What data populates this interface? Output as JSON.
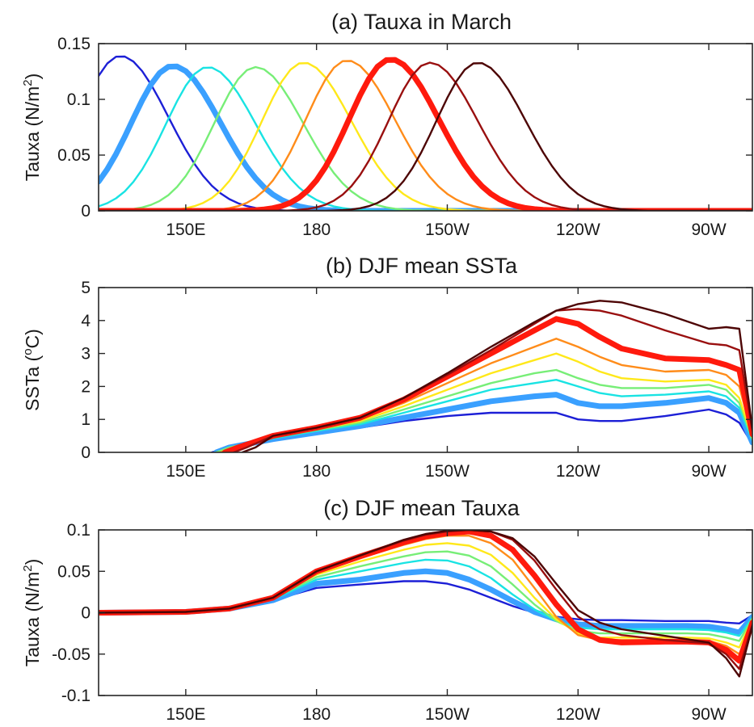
{
  "chart_data": [
    {
      "type": "line",
      "title": "(a) Tauxa in March",
      "ylabel": "Tauxa (N/m",
      "ylabel_sup": "2",
      "ylabel_tail": ")",
      "xlim": [
        130,
        280
      ],
      "ylim": [
        0,
        0.15
      ],
      "xticks": [
        {
          "v": 150,
          "label": "150E"
        },
        {
          "v": 180,
          "label": "180"
        },
        {
          "v": 210,
          "label": "150W"
        },
        {
          "v": 240,
          "label": "120W"
        },
        {
          "v": 270,
          "label": "90W"
        }
      ],
      "yticks": [
        {
          "v": 0,
          "label": "0"
        },
        {
          "v": 0.05,
          "label": "0.05"
        },
        {
          "v": 0.1,
          "label": "0.1"
        },
        {
          "v": 0.15,
          "label": "0.15"
        }
      ],
      "grid": false,
      "series": [
        {
          "color": "#1c1fd6",
          "thick": false,
          "peak_lon": 135,
          "amp": 0.139
        },
        {
          "color": "#3aa0ff",
          "thick": true,
          "peak_lon": 147,
          "amp": 0.13
        },
        {
          "color": "#19e3e3",
          "thick": false,
          "peak_lon": 155,
          "amp": 0.129
        },
        {
          "color": "#77ee77",
          "thick": false,
          "peak_lon": 166,
          "amp": 0.129
        },
        {
          "color": "#ffe81a",
          "thick": false,
          "peak_lon": 177,
          "amp": 0.133
        },
        {
          "color": "#ff8c1a",
          "thick": false,
          "peak_lon": 187,
          "amp": 0.135
        },
        {
          "color": "#ff1a0d",
          "thick": true,
          "peak_lon": 197,
          "amp": 0.136
        },
        {
          "color": "#990f0f",
          "thick": false,
          "peak_lon": 206,
          "amp": 0.133
        },
        {
          "color": "#4d0505",
          "thick": false,
          "peak_lon": 217,
          "amp": 0.133
        }
      ]
    },
    {
      "type": "line",
      "title": "(b) DJF mean SSTa",
      "ylabel": "SSTa (",
      "ylabel_sup": "o",
      "ylabel_tail": "C)",
      "xlim": [
        130,
        280
      ],
      "ylim": [
        0,
        5
      ],
      "xticks": [
        {
          "v": 150,
          "label": "150E"
        },
        {
          "v": 180,
          "label": "180"
        },
        {
          "v": 210,
          "label": "150W"
        },
        {
          "v": 240,
          "label": "120W"
        },
        {
          "v": 270,
          "label": "90W"
        }
      ],
      "yticks": [
        {
          "v": 0,
          "label": "0"
        },
        {
          "v": 1,
          "label": "1"
        },
        {
          "v": 2,
          "label": "2"
        },
        {
          "v": 3,
          "label": "3"
        },
        {
          "v": 4,
          "label": "4"
        },
        {
          "v": 5,
          "label": "5"
        }
      ],
      "grid": false,
      "series": [
        {
          "color": "#1c1fd6",
          "thick": false,
          "x": [
            156,
            160,
            170,
            180,
            190,
            200,
            210,
            220,
            230,
            235,
            240,
            245,
            250,
            260,
            270,
            274,
            277,
            280
          ],
          "y": [
            0,
            0.15,
            0.4,
            0.6,
            0.75,
            0.95,
            1.1,
            1.2,
            1.2,
            1.2,
            1.0,
            0.95,
            0.95,
            1.1,
            1.3,
            1.15,
            0.9,
            0.25
          ]
        },
        {
          "color": "#3aa0ff",
          "thick": true,
          "x": [
            157,
            160,
            170,
            180,
            190,
            200,
            210,
            220,
            230,
            235,
            240,
            245,
            250,
            260,
            270,
            274,
            277,
            280
          ],
          "y": [
            0,
            0.15,
            0.4,
            0.6,
            0.8,
            1.05,
            1.3,
            1.55,
            1.7,
            1.75,
            1.5,
            1.4,
            1.4,
            1.5,
            1.65,
            1.5,
            1.2,
            0.3
          ]
        },
        {
          "color": "#19e3e3",
          "thick": false,
          "x": [
            157,
            160,
            170,
            180,
            190,
            200,
            210,
            220,
            230,
            235,
            240,
            245,
            250,
            260,
            270,
            274,
            277,
            280
          ],
          "y": [
            0,
            0.15,
            0.42,
            0.65,
            0.85,
            1.2,
            1.55,
            1.9,
            2.1,
            2.2,
            2.0,
            1.8,
            1.7,
            1.75,
            1.85,
            1.7,
            1.35,
            0.35
          ]
        },
        {
          "color": "#77ee77",
          "thick": false,
          "x": [
            157,
            160,
            170,
            180,
            190,
            200,
            210,
            220,
            230,
            235,
            240,
            245,
            250,
            260,
            270,
            274,
            277,
            280
          ],
          "y": [
            0,
            0.15,
            0.45,
            0.68,
            0.9,
            1.3,
            1.7,
            2.1,
            2.4,
            2.5,
            2.25,
            2.05,
            1.95,
            1.95,
            2.05,
            1.9,
            1.5,
            0.4
          ]
        },
        {
          "color": "#ffe81a",
          "thick": false,
          "x": [
            158,
            161,
            170,
            180,
            190,
            200,
            210,
            220,
            230,
            235,
            240,
            245,
            250,
            260,
            270,
            274,
            277,
            280
          ],
          "y": [
            0,
            0.15,
            0.45,
            0.7,
            0.95,
            1.4,
            1.9,
            2.4,
            2.8,
            3.0,
            2.75,
            2.45,
            2.25,
            2.15,
            2.2,
            2.05,
            1.65,
            0.45
          ]
        },
        {
          "color": "#ff8c1a",
          "thick": false,
          "x": [
            158,
            161,
            170,
            180,
            190,
            200,
            210,
            220,
            230,
            235,
            240,
            245,
            250,
            260,
            270,
            274,
            277,
            280
          ],
          "y": [
            0,
            0.15,
            0.48,
            0.72,
            1.0,
            1.5,
            2.1,
            2.7,
            3.2,
            3.45,
            3.2,
            2.9,
            2.65,
            2.45,
            2.5,
            2.35,
            2.0,
            0.5
          ]
        },
        {
          "color": "#ff1a0d",
          "thick": true,
          "x": [
            159,
            162,
            170,
            180,
            190,
            200,
            210,
            220,
            230,
            235,
            240,
            245,
            250,
            260,
            270,
            274,
            277,
            280
          ],
          "y": [
            0,
            0.15,
            0.5,
            0.75,
            1.05,
            1.6,
            2.3,
            3.0,
            3.7,
            4.05,
            3.9,
            3.5,
            3.15,
            2.85,
            2.8,
            2.65,
            2.5,
            0.55
          ]
        },
        {
          "color": "#990f0f",
          "thick": false,
          "x": [
            161,
            164,
            170,
            180,
            190,
            200,
            210,
            220,
            230,
            235,
            240,
            245,
            250,
            260,
            270,
            274,
            277,
            280
          ],
          "y": [
            0,
            0.15,
            0.5,
            0.75,
            1.05,
            1.65,
            2.35,
            3.1,
            3.9,
            4.3,
            4.35,
            4.3,
            4.15,
            3.7,
            3.3,
            3.25,
            3.1,
            0.65
          ]
        },
        {
          "color": "#4d0505",
          "thick": false,
          "x": [
            163,
            166,
            170,
            180,
            190,
            200,
            210,
            220,
            230,
            235,
            240,
            245,
            250,
            260,
            270,
            274,
            277,
            280
          ],
          "y": [
            0,
            0.15,
            0.5,
            0.75,
            1.05,
            1.65,
            2.4,
            3.2,
            3.95,
            4.3,
            4.5,
            4.6,
            4.55,
            4.2,
            3.75,
            3.8,
            3.75,
            0.7
          ]
        }
      ]
    },
    {
      "type": "line",
      "title": "(c) DJF mean Tauxa",
      "ylabel": "Tauxa (N/m",
      "ylabel_sup": "2",
      "ylabel_tail": ")",
      "xlim": [
        130,
        280
      ],
      "ylim": [
        -0.1,
        0.1
      ],
      "xticks": [
        {
          "v": 150,
          "label": "150E"
        },
        {
          "v": 180,
          "label": "180"
        },
        {
          "v": 210,
          "label": "150W"
        },
        {
          "v": 240,
          "label": "120W"
        },
        {
          "v": 270,
          "label": "90W"
        }
      ],
      "yticks": [
        {
          "v": -0.1,
          "label": "-0.1"
        },
        {
          "v": -0.05,
          "label": "-0.05"
        },
        {
          "v": 0,
          "label": "0"
        },
        {
          "v": 0.05,
          "label": "0.05"
        },
        {
          "v": 0.1,
          "label": "0.1"
        }
      ],
      "grid": false,
      "series": [
        {
          "color": "#1c1fd6",
          "thick": false,
          "x": [
            130,
            150,
            160,
            170,
            180,
            190,
            200,
            205,
            210,
            215,
            220,
            225,
            230,
            235,
            240,
            245,
            250,
            260,
            265,
            270,
            274,
            277,
            280
          ],
          "y": [
            0,
            0.001,
            0.005,
            0.015,
            0.03,
            0.034,
            0.038,
            0.038,
            0.035,
            0.028,
            0.018,
            0.008,
            0,
            -0.005,
            -0.008,
            -0.009,
            -0.009,
            -0.01,
            -0.01,
            -0.01,
            -0.012,
            -0.013,
            -0.003
          ]
        },
        {
          "color": "#3aa0ff",
          "thick": true,
          "x": [
            130,
            150,
            160,
            170,
            180,
            190,
            200,
            205,
            210,
            215,
            220,
            225,
            230,
            235,
            240,
            245,
            250,
            260,
            265,
            270,
            274,
            277,
            280
          ],
          "y": [
            0,
            0.001,
            0.005,
            0.015,
            0.035,
            0.04,
            0.048,
            0.05,
            0.048,
            0.04,
            0.028,
            0.014,
            0.001,
            -0.008,
            -0.014,
            -0.016,
            -0.016,
            -0.016,
            -0.016,
            -0.017,
            -0.02,
            -0.024,
            -0.005
          ]
        },
        {
          "color": "#19e3e3",
          "thick": false,
          "x": [
            130,
            150,
            160,
            170,
            180,
            190,
            200,
            205,
            210,
            215,
            220,
            225,
            230,
            235,
            240,
            245,
            250,
            260,
            265,
            270,
            274,
            277,
            280
          ],
          "y": [
            0,
            0.001,
            0.005,
            0.016,
            0.04,
            0.05,
            0.06,
            0.064,
            0.063,
            0.056,
            0.042,
            0.022,
            0.004,
            -0.01,
            -0.018,
            -0.02,
            -0.02,
            -0.02,
            -0.02,
            -0.021,
            -0.024,
            -0.028,
            -0.006
          ]
        },
        {
          "color": "#77ee77",
          "thick": false,
          "x": [
            130,
            150,
            160,
            170,
            180,
            190,
            200,
            205,
            210,
            215,
            220,
            225,
            230,
            235,
            240,
            245,
            250,
            260,
            265,
            270,
            274,
            277,
            280
          ],
          "y": [
            0,
            0.001,
            0.005,
            0.017,
            0.043,
            0.056,
            0.068,
            0.073,
            0.074,
            0.069,
            0.056,
            0.034,
            0.01,
            -0.01,
            -0.022,
            -0.025,
            -0.025,
            -0.025,
            -0.025,
            -0.026,
            -0.03,
            -0.034,
            -0.007
          ]
        },
        {
          "color": "#ffe81a",
          "thick": false,
          "x": [
            130,
            150,
            160,
            170,
            180,
            190,
            200,
            205,
            210,
            215,
            220,
            225,
            230,
            235,
            240,
            245,
            250,
            260,
            265,
            270,
            274,
            277,
            280
          ],
          "y": [
            0,
            0.001,
            0.005,
            0.018,
            0.046,
            0.062,
            0.076,
            0.082,
            0.084,
            0.081,
            0.07,
            0.048,
            0.018,
            -0.008,
            -0.025,
            -0.03,
            -0.03,
            -0.03,
            -0.03,
            -0.031,
            -0.036,
            -0.042,
            -0.008
          ]
        },
        {
          "color": "#ff8c1a",
          "thick": false,
          "x": [
            130,
            150,
            160,
            170,
            180,
            190,
            200,
            205,
            210,
            215,
            220,
            225,
            230,
            235,
            240,
            245,
            250,
            260,
            265,
            270,
            274,
            277,
            280
          ],
          "y": [
            0,
            0.001,
            0.005,
            0.018,
            0.048,
            0.066,
            0.082,
            0.089,
            0.093,
            0.093,
            0.084,
            0.064,
            0.03,
            -0.005,
            -0.027,
            -0.033,
            -0.033,
            -0.033,
            -0.033,
            -0.034,
            -0.04,
            -0.05,
            -0.01
          ]
        },
        {
          "color": "#ff1a0d",
          "thick": true,
          "x": [
            130,
            150,
            160,
            170,
            180,
            190,
            200,
            205,
            210,
            215,
            220,
            225,
            230,
            235,
            240,
            245,
            250,
            260,
            265,
            270,
            274,
            277,
            280
          ],
          "y": [
            0,
            0.001,
            0.005,
            0.018,
            0.05,
            0.068,
            0.085,
            0.092,
            0.096,
            0.098,
            0.093,
            0.076,
            0.045,
            0.01,
            -0.02,
            -0.033,
            -0.036,
            -0.035,
            -0.035,
            -0.036,
            -0.045,
            -0.058,
            -0.012
          ]
        },
        {
          "color": "#990f0f",
          "thick": false,
          "x": [
            130,
            150,
            160,
            170,
            180,
            190,
            200,
            205,
            210,
            215,
            220,
            225,
            230,
            235,
            240,
            245,
            250,
            260,
            265,
            270,
            274,
            277,
            280
          ],
          "y": [
            0,
            0.001,
            0.005,
            0.018,
            0.05,
            0.069,
            0.087,
            0.094,
            0.098,
            0.1,
            0.098,
            0.088,
            0.063,
            0.028,
            -0.005,
            -0.02,
            -0.027,
            -0.033,
            -0.035,
            -0.037,
            -0.05,
            -0.068,
            -0.014
          ]
        },
        {
          "color": "#4d0505",
          "thick": false,
          "x": [
            130,
            150,
            160,
            170,
            180,
            190,
            200,
            205,
            210,
            215,
            220,
            225,
            230,
            235,
            240,
            245,
            250,
            260,
            265,
            270,
            274,
            277,
            280
          ],
          "y": [
            0,
            0.001,
            0.005,
            0.018,
            0.05,
            0.069,
            0.088,
            0.095,
            0.099,
            0.1,
            0.098,
            0.09,
            0.068,
            0.035,
            0.003,
            -0.012,
            -0.02,
            -0.028,
            -0.032,
            -0.036,
            -0.055,
            -0.077,
            -0.016
          ]
        }
      ]
    }
  ]
}
